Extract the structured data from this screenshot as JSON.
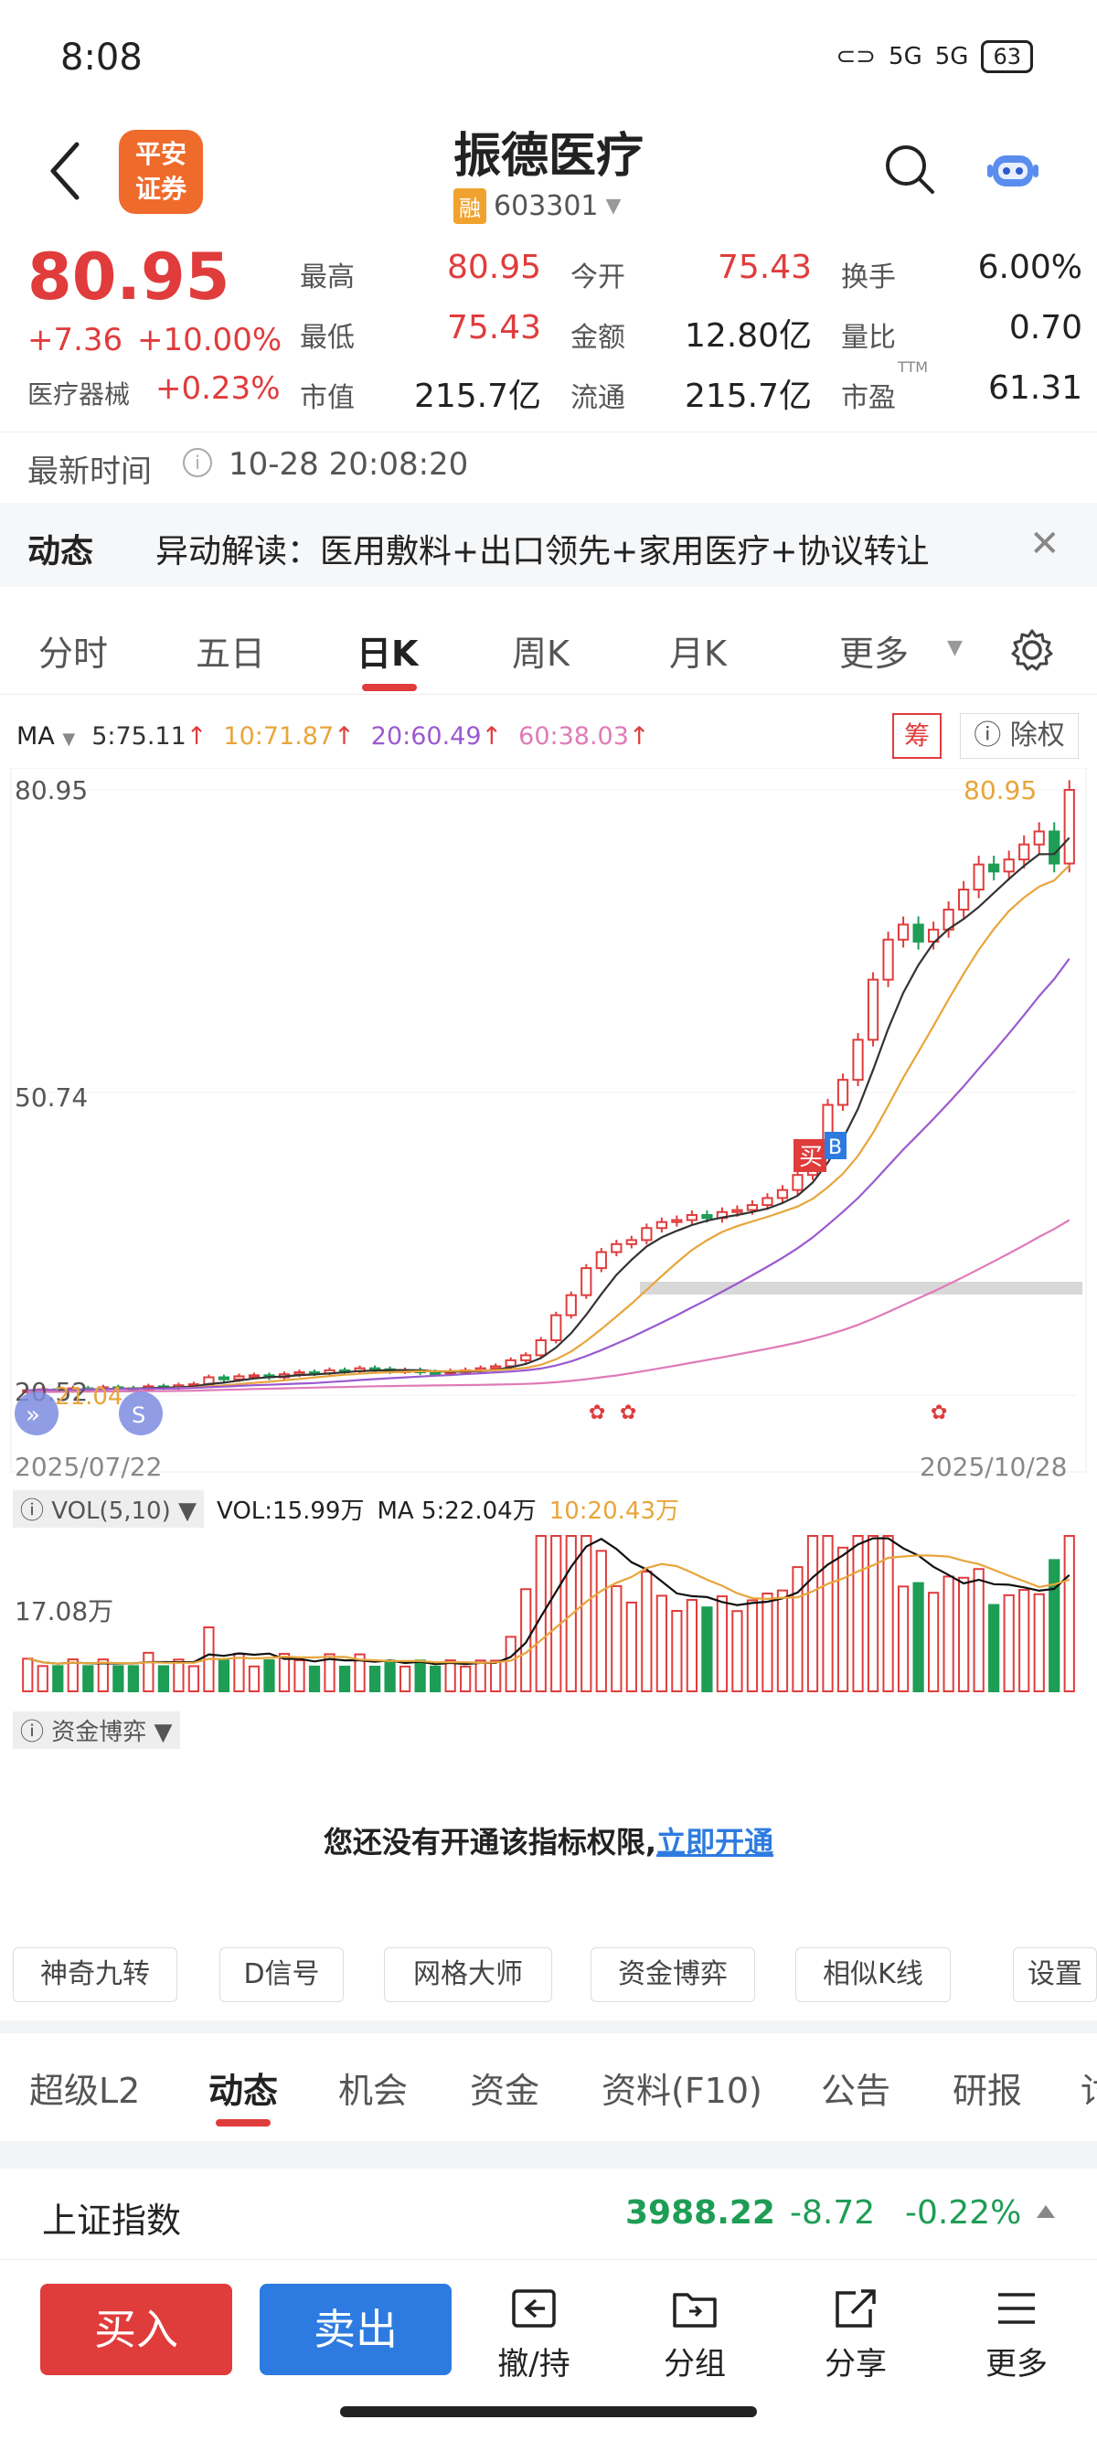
{
  "status_bar": {
    "time": "8:08",
    "signal1": "5G",
    "signal2": "5G",
    "battery": "63"
  },
  "header": {
    "logo_line1": "平安",
    "logo_line2": "证券",
    "stock_name": "振德医疗",
    "badge": "融",
    "stock_code": "603301"
  },
  "quote": {
    "price": "80.95",
    "change_abs": "+7.36",
    "change_pct": "+10.00%",
    "sector": "医疗器械",
    "sector_pct": "+0.23%",
    "high_label": "最高",
    "high": "80.95",
    "open_label": "今开",
    "open": "75.43",
    "turnover_label": "换手",
    "turnover": "6.00%",
    "low_label": "最低",
    "low": "75.43",
    "amount_label": "金额",
    "amount": "12.80亿",
    "volratio_label": "量比",
    "volratio": "0.70",
    "mcap_label": "市值",
    "mcap": "215.7亿",
    "float_label": "流通",
    "float": "215.7亿",
    "pe_label": "市盈",
    "pe_sup": "TTM",
    "pe": "61.31"
  },
  "update": {
    "label": "最新时间",
    "value": "10-28 20:08:20"
  },
  "news": {
    "label": "动态",
    "text": "异动解读：医用敷料+出口领先+家用医疗+协议转让"
  },
  "period_tabs": [
    "分时",
    "五日",
    "日K",
    "周K",
    "月K",
    "更多"
  ],
  "ma": {
    "label": "MA",
    "ma5": "5:75.11",
    "ma10": "10:71.87",
    "ma20": "20:60.49",
    "ma60": "60:38.03",
    "chou": "筹",
    "chuquan": "除权",
    "colors": {
      "ma5": "#333333",
      "ma10": "#e8a53a",
      "ma20": "#9b59d0",
      "ma60": "#e07ab8"
    }
  },
  "chart_labels": {
    "y_top": "80.95",
    "y_mid": "50.74",
    "y_low": "20.52",
    "y_low_tag": "21.04",
    "max_tag": "80.95",
    "date_start": "2025/07/22",
    "date_end": "2025/10/28",
    "buy_mark": "买",
    "b_mark": "B"
  },
  "chart_data": {
    "type": "candlestick",
    "x_start": "2025/07/22",
    "x_end": "2025/10/28",
    "ylim": [
      20.52,
      80.95
    ],
    "y_ticks": [
      80.95,
      50.74,
      20.52
    ],
    "close": [
      21.0,
      21.1,
      21.0,
      21.2,
      21.1,
      21.3,
      21.2,
      21.1,
      21.4,
      21.3,
      21.5,
      21.6,
      22.3,
      22.1,
      22.4,
      22.5,
      22.3,
      22.6,
      22.8,
      22.7,
      23.0,
      22.9,
      23.2,
      23.1,
      22.9,
      23.0,
      22.8,
      22.7,
      22.9,
      23.0,
      23.2,
      23.4,
      24.0,
      24.5,
      26.0,
      28.5,
      30.5,
      33.2,
      34.8,
      35.6,
      36.0,
      37.2,
      37.8,
      38.0,
      38.5,
      38.2,
      38.8,
      39.0,
      39.5,
      40.2,
      41.0,
      42.5,
      45.5,
      49.5,
      52.0,
      56.0,
      62.0,
      66.0,
      67.5,
      65.8,
      67.0,
      69.0,
      71.0,
      73.5,
      72.8,
      74.0,
      75.5,
      76.8,
      73.6,
      80.95
    ],
    "colors": {
      "up": "#e03c3c",
      "down": "#1e9d55"
    }
  },
  "volume": {
    "label": "VOL(5,10)",
    "vol": "VOL:15.99万",
    "ma5": "MA 5:22.04万",
    "ma10": "10:20.43万",
    "y_label": "17.08万"
  },
  "fund": {
    "label": "资金博弈",
    "message": "您还没有开通该指标权限,",
    "link": "立即开通"
  },
  "tools": [
    "神奇九转",
    "D信号",
    "网格大师",
    "资金博弈",
    "相似K线",
    "设置"
  ],
  "bottom_tabs": [
    "超级L2",
    "动态",
    "机会",
    "资金",
    "资料(F10)",
    "公告",
    "研报",
    "讨"
  ],
  "index": {
    "name": "上证指数",
    "value": "3988.22",
    "change": "-8.72",
    "pct": "-0.22%"
  },
  "actions": {
    "buy": "买入",
    "sell": "卖出",
    "hold": "撤/持",
    "group": "分组",
    "share": "分享",
    "more": "更多"
  }
}
